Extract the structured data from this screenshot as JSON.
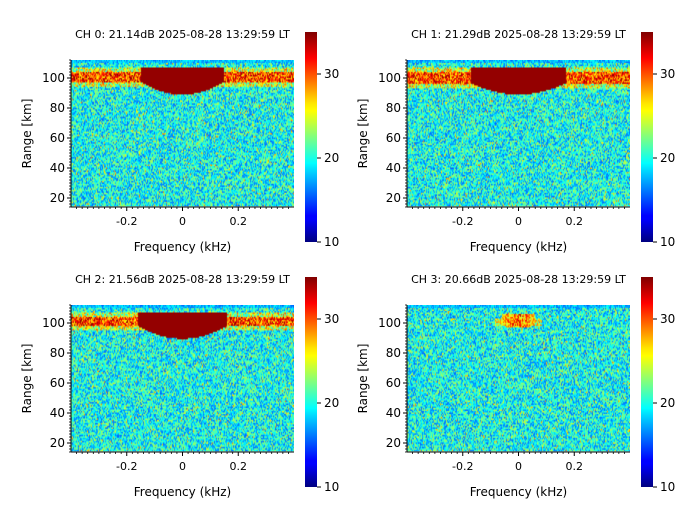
{
  "chart_data": [
    {
      "type": "heatmap",
      "title": "CH 0: 21.14dB 2025-08-28 13:29:59 LT",
      "xlabel": "Frequency (kHz)",
      "ylabel": "Range [km]",
      "xlim": [
        -0.4,
        0.4
      ],
      "ylim": [
        14,
        112
      ],
      "xticks": [
        -0.2,
        0,
        0.2
      ],
      "yticks": [
        20,
        40,
        60,
        80,
        100
      ],
      "data_range": [
        14.5,
        112
      ],
      "colorbar": {
        "min": 10,
        "max": 35,
        "ticks": [
          10,
          20,
          30
        ],
        "colormap": "jet"
      },
      "layer": {
        "band_low_km": 97.5,
        "band_high_km": 104.5,
        "echo_bottom_km": 89,
        "echo_half_width_khz": 0.15,
        "strength": "strong"
      }
    },
    {
      "type": "heatmap",
      "title": "CH 1: 21.29dB 2025-08-28 13:29:59 LT",
      "xlabel": "Frequency (kHz)",
      "ylabel": "Range [km]",
      "xlim": [
        -0.4,
        0.4
      ],
      "ylim": [
        14,
        112
      ],
      "xticks": [
        -0.2,
        0,
        0.2
      ],
      "yticks": [
        20,
        40,
        60,
        80,
        100
      ],
      "data_range": [
        14.5,
        112
      ],
      "colorbar": {
        "min": 10,
        "max": 35,
        "ticks": [
          10,
          20,
          30
        ],
        "colormap": "jet"
      },
      "layer": {
        "band_low_km": 96.5,
        "band_high_km": 104.5,
        "echo_bottom_km": 89,
        "echo_half_width_khz": 0.17,
        "strength": "strong"
      }
    },
    {
      "type": "heatmap",
      "title": "CH 2: 21.56dB 2025-08-28 13:29:59 LT",
      "xlabel": "Frequency (kHz)",
      "ylabel": "Range [km]",
      "xlim": [
        -0.4,
        0.4
      ],
      "ylim": [
        14,
        112
      ],
      "xticks": [
        -0.2,
        0,
        0.2
      ],
      "yticks": [
        20,
        40,
        60,
        80,
        100
      ],
      "data_range": [
        14.5,
        112
      ],
      "colorbar": {
        "min": 10,
        "max": 35,
        "ticks": [
          10,
          20,
          30
        ],
        "colormap": "jet"
      },
      "layer": {
        "band_low_km": 98,
        "band_high_km": 104.5,
        "echo_bottom_km": 89.5,
        "echo_half_width_khz": 0.16,
        "strength": "strong"
      }
    },
    {
      "type": "heatmap",
      "title": "CH 3: 20.66dB 2025-08-28 13:29:59 LT",
      "xlabel": "Frequency (kHz)",
      "ylabel": "Range [km]",
      "xlim": [
        -0.4,
        0.4
      ],
      "ylim": [
        14,
        112
      ],
      "xticks": [
        -0.2,
        0,
        0.2
      ],
      "yticks": [
        20,
        40,
        60,
        80,
        100
      ],
      "data_range": [
        14.5,
        112
      ],
      "colorbar": {
        "min": 10,
        "max": 35,
        "ticks": [
          10,
          20,
          30
        ],
        "colormap": "jet"
      },
      "layer": {
        "band_low_km": 98,
        "band_high_km": 103,
        "echo_bottom_km": 97,
        "echo_half_width_khz": 0.06,
        "strength": "weak"
      }
    }
  ]
}
